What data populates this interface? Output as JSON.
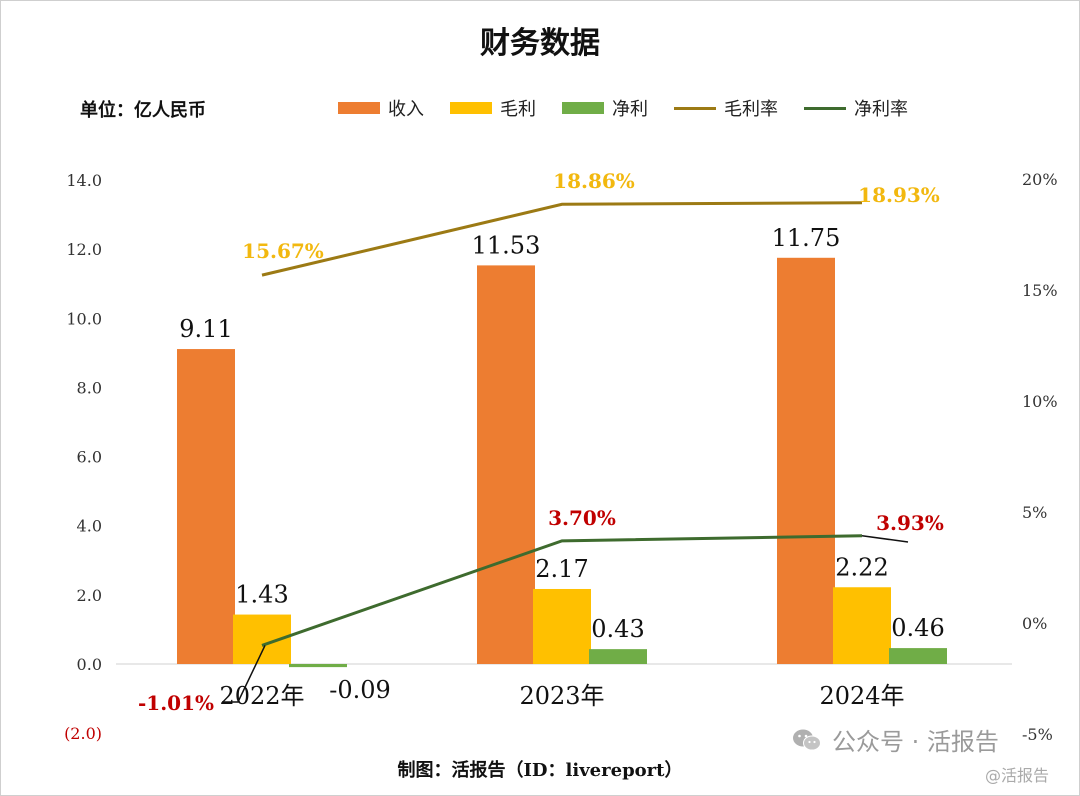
{
  "title": "财务数据",
  "unit_label": "单位：亿人民币",
  "footer": "制图：活报告（ID：livereport）",
  "watermark": {
    "line1": "公众号 · 活报告",
    "line2": "@活报告",
    "icon": "wechat-icon"
  },
  "legend": [
    {
      "name": "收入",
      "kind": "bar",
      "color": "#ED7D31"
    },
    {
      "name": "毛利",
      "kind": "bar",
      "color": "#FFC000"
    },
    {
      "name": "净利",
      "kind": "bar",
      "color": "#70AD47"
    },
    {
      "name": "毛利率",
      "kind": "line",
      "color": "#9C7A14"
    },
    {
      "name": "净利率",
      "kind": "line",
      "color": "#3E6B2E"
    }
  ],
  "chart_data": {
    "type": "bar",
    "categories": [
      "2022年",
      "2023年",
      "2024年"
    ],
    "series": [
      {
        "name": "收入",
        "values": [
          9.11,
          11.53,
          11.75
        ],
        "labels": [
          "9.11",
          "11.53",
          "11.75"
        ],
        "color": "#ED7D31"
      },
      {
        "name": "毛利",
        "values": [
          1.43,
          2.17,
          2.22
        ],
        "labels": [
          "1.43",
          "2.17",
          "2.22"
        ],
        "color": "#FFC000"
      },
      {
        "name": "净利",
        "values": [
          -0.09,
          0.43,
          0.46
        ],
        "labels": [
          "-0.09",
          "0.43",
          "0.46"
        ],
        "color": "#70AD47"
      }
    ],
    "line_series": [
      {
        "name": "毛利率",
        "values": [
          15.67,
          18.86,
          18.93
        ],
        "labels": [
          "15.67%",
          "18.86%",
          "18.93%"
        ],
        "color": "#9C7A14",
        "label_color": "#F2B80F"
      },
      {
        "name": "净利率",
        "values": [
          -1.01,
          3.7,
          3.93
        ],
        "labels": [
          "-1.01%",
          "3.70%",
          "3.93%"
        ],
        "color": "#3E6B2E",
        "label_color": "#C00000"
      }
    ],
    "left_axis": {
      "min": -2,
      "max": 14,
      "ticks": [
        "(2.0)",
        "0.0",
        "2.0",
        "4.0",
        "6.0",
        "8.0",
        "10.0",
        "12.0",
        "14.0"
      ],
      "tick_values": [
        -2,
        0,
        2,
        4,
        6,
        8,
        10,
        12,
        14
      ],
      "negative_color": "#C00000"
    },
    "right_axis": {
      "min": -5,
      "max": 20,
      "ticks": [
        "-5%",
        "0%",
        "5%",
        "10%",
        "15%",
        "20%"
      ],
      "tick_values": [
        -5,
        0,
        5,
        10,
        15,
        20
      ]
    },
    "grid": false,
    "legend_position": "top"
  }
}
